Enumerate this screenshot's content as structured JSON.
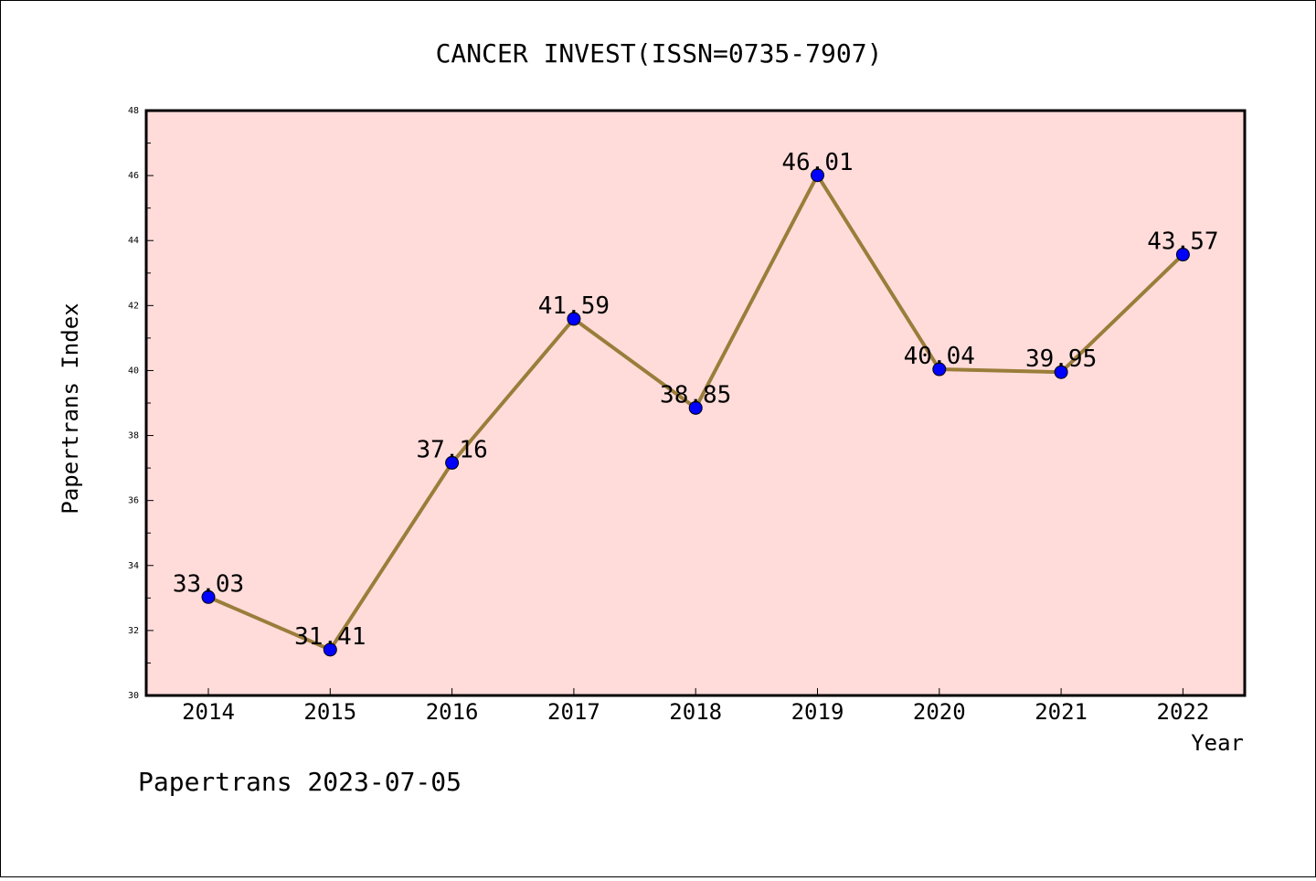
{
  "chart_data": {
    "type": "line",
    "title": "CANCER INVEST(ISSN=0735-7907)",
    "xlabel": "Year",
    "ylabel": "Papertrans Index",
    "x": [
      "2014",
      "2015",
      "2016",
      "2017",
      "2018",
      "2019",
      "2020",
      "2021",
      "2022"
    ],
    "series": [
      {
        "values": [
          33.03,
          31.41,
          37.16,
          41.59,
          38.85,
          46.01,
          40.04,
          39.95,
          43.57
        ],
        "labels": [
          "33.03",
          "31.41",
          "37.16",
          "41.59",
          "38.85",
          "46.01",
          "40.04",
          "39.95",
          "43.57"
        ]
      }
    ],
    "ylim": [
      30,
      48
    ],
    "yticks": [
      "30",
      "32",
      "34",
      "36",
      "38",
      "40",
      "42",
      "44",
      "46",
      "48"
    ],
    "grid": false,
    "colors": {
      "plot_bg": "#FFDCDA",
      "line": "#9A7D3A",
      "marker": "#0000FF"
    }
  },
  "footer": {
    "text": "Papertrans 2023-07-05"
  }
}
